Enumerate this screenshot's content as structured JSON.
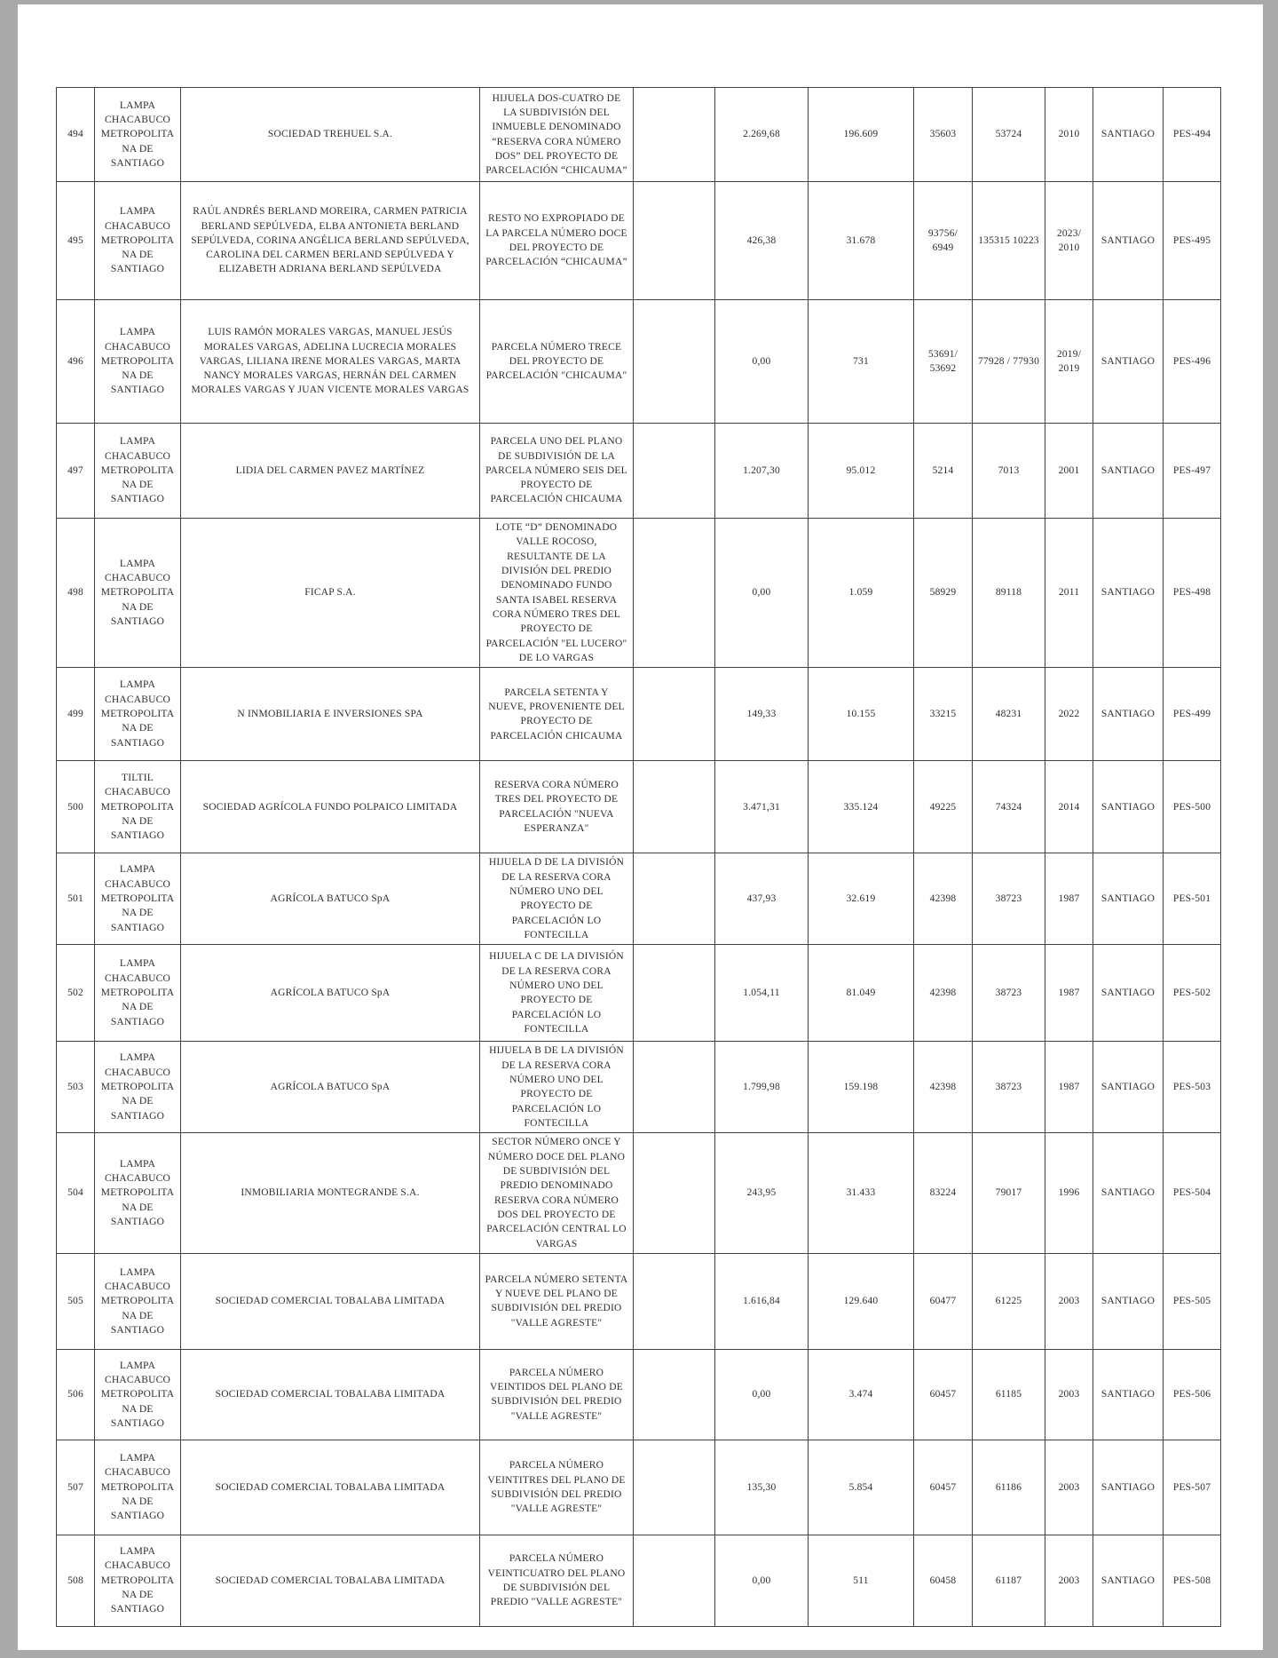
{
  "page": {
    "background_color": "#a9a9a9",
    "paper_color": "#ffffff",
    "border_color": "#3f3f3f"
  },
  "table": {
    "rows": [
      {
        "num": "494",
        "location": "LAMPA CHACABUCO METROPOLITANA DE SANTIAGO",
        "owner": "SOCIEDAD TREHUEL S.A.",
        "description": "HIJUELA DOS-CUATRO DE LA SUBDIVISIÓN DEL INMUEBLE DENOMINADO “RESERVA CORA NÚMERO DOS” DEL PROYECTO DE PARCELACIÓN “CHICAUMA”",
        "blank": "",
        "val_a": "2.269,68",
        "val_b": "196.609",
        "val_c": "35603",
        "val_d": "53724",
        "year": "2010",
        "city": "SANTIAGO",
        "code": "PES-494"
      },
      {
        "num": "495",
        "location": "LAMPA CHACABUCO METROPOLITANA DE SANTIAGO",
        "owner": "RAÚL ANDRÉS BERLAND MOREIRA, CARMEN PATRICIA BERLAND SEPÚLVEDA, ELBA ANTONIETA BERLAND SEPÚLVEDA, CORINA ANGÉLICA BERLAND SEPÚLVEDA, CAROLINA DEL CARMEN BERLAND SEPÚLVEDA Y ELIZABETH ADRIANA BERLAND SEPÚLVEDA",
        "description": "RESTO NO EXPROPIADO DE LA PARCELA NÚMERO DOCE DEL PROYECTO DE PARCELACIÓN “CHICAUMA”",
        "blank": "",
        "val_a": "426,38",
        "val_b": "31.678",
        "val_c": "93756/ 6949",
        "val_d": "135315 10223",
        "year": "2023/ 2010",
        "city": "SANTIAGO",
        "code": "PES-495"
      },
      {
        "num": "496",
        "location": "LAMPA CHACABUCO METROPOLITANA DE SANTIAGO",
        "owner": "LUIS RAMÓN MORALES VARGAS, MANUEL JESÚS MORALES VARGAS, ADELINA LUCRECIA MORALES VARGAS, LILIANA IRENE MORALES VARGAS, MARTA NANCY MORALES VARGAS, HERNÁN DEL CARMEN MORALES VARGAS Y JUAN VICENTE MORALES VARGAS",
        "description": "PARCELA NÚMERO TRECE DEL PROYECTO DE PARCELACIÓN \"CHICAUMA\"",
        "blank": "",
        "val_a": "0,00",
        "val_b": "731",
        "val_c": "53691/ 53692",
        "val_d": "77928 / 77930",
        "year": "2019/ 2019",
        "city": "SANTIAGO",
        "code": "PES-496"
      },
      {
        "num": "497",
        "location": "LAMPA CHACABUCO METROPOLITANA DE SANTIAGO",
        "owner": "LIDIA DEL CARMEN PAVEZ MARTÍNEZ",
        "description": "PARCELA UNO DEL PLANO DE SUBDIVISIÓN DE LA PARCELA NÚMERO SEIS DEL PROYECTO DE PARCELACIÓN CHICAUMA",
        "blank": "",
        "val_a": "1.207,30",
        "val_b": "95.012",
        "val_c": "5214",
        "val_d": "7013",
        "year": "2001",
        "city": "SANTIAGO",
        "code": "PES-497"
      },
      {
        "num": "498",
        "location": "LAMPA CHACABUCO METROPOLITANA DE SANTIAGO",
        "owner": "FICAP S.A.",
        "description": "LOTE “D” DENOMINADO VALLE ROCOSO, RESULTANTE DE LA DIVISIÓN DEL PREDIO DENOMINADO FUNDO SANTA ISABEL RESERVA CORA NÚMERO TRES DEL PROYECTO DE PARCELACIÓN \"EL LUCERO\" DE LO VARGAS",
        "blank": "",
        "val_a": "0,00",
        "val_b": "1.059",
        "val_c": "58929",
        "val_d": "89118",
        "year": "2011",
        "city": "SANTIAGO",
        "code": "PES-498"
      },
      {
        "num": "499",
        "location": "LAMPA CHACABUCO METROPOLITANA DE SANTIAGO",
        "owner": "N INMOBILIARIA E INVERSIONES SPA",
        "description": "PARCELA SETENTA Y NUEVE, PROVENIENTE DEL PROYECTO DE PARCELACIÓN CHICAUMA",
        "blank": "",
        "val_a": "149,33",
        "val_b": "10.155",
        "val_c": "33215",
        "val_d": "48231",
        "year": "2022",
        "city": "SANTIAGO",
        "code": "PES-499"
      },
      {
        "num": "500",
        "location": "TILTIL CHACABUCO METROPOLITANA DE SANTIAGO",
        "owner": "SOCIEDAD AGRÍCOLA FUNDO POLPAICO LIMITADA",
        "description": "RESERVA CORA NÚMERO TRES DEL PROYECTO DE PARCELACIÓN \"NUEVA ESPERANZA\"",
        "blank": "",
        "val_a": "3.471,31",
        "val_b": "335.124",
        "val_c": "49225",
        "val_d": "74324",
        "year": "2014",
        "city": "SANTIAGO",
        "code": "PES-500"
      },
      {
        "num": "501",
        "location": "LAMPA CHACABUCO METROPOLITANA DE SANTIAGO",
        "owner": "AGRÍCOLA BATUCO SpA",
        "description": "HIJUELA D DE LA DIVISIÓN DE LA RESERVA CORA NÚMERO UNO DEL PROYECTO DE PARCELACIÓN LO FONTECILLA",
        "blank": "",
        "val_a": "437,93",
        "val_b": "32.619",
        "val_c": "42398",
        "val_d": "38723",
        "year": "1987",
        "city": "SANTIAGO",
        "code": "PES-501"
      },
      {
        "num": "502",
        "location": "LAMPA CHACABUCO METROPOLITANA DE SANTIAGO",
        "owner": "AGRÍCOLA BATUCO SpA",
        "description": "HIJUELA C DE LA DIVISIÓN DE LA RESERVA CORA NÚMERO UNO DEL PROYECTO DE PARCELACIÓN LO FONTECILLA",
        "blank": "",
        "val_a": "1.054,11",
        "val_b": "81.049",
        "val_c": "42398",
        "val_d": "38723",
        "year": "1987",
        "city": "SANTIAGO",
        "code": "PES-502"
      },
      {
        "num": "503",
        "location": "LAMPA CHACABUCO METROPOLITANA DE SANTIAGO",
        "owner": "AGRÍCOLA BATUCO SpA",
        "description": "HIJUELA B DE LA DIVISIÓN DE LA RESERVA CORA NÚMERO UNO DEL PROYECTO DE PARCELACIÓN LO FONTECILLA",
        "blank": "",
        "val_a": "1.799,98",
        "val_b": "159.198",
        "val_c": "42398",
        "val_d": "38723",
        "year": "1987",
        "city": "SANTIAGO",
        "code": "PES-503"
      },
      {
        "num": "504",
        "location": "LAMPA CHACABUCO METROPOLITANA DE SANTIAGO",
        "owner": "INMOBILIARIA MONTEGRANDE S.A.",
        "description": "SECTOR NÚMERO ONCE Y NÚMERO DOCE DEL PLANO DE SUBDIVISIÓN DEL PREDIO DENOMINADO RESERVA CORA NÚMERO DOS DEL PROYECTO DE PARCELACIÓN CENTRAL LO VARGAS",
        "blank": "",
        "val_a": "243,95",
        "val_b": "31.433",
        "val_c": "83224",
        "val_d": "79017",
        "year": "1996",
        "city": "SANTIAGO",
        "code": "PES-504"
      },
      {
        "num": "505",
        "location": "LAMPA CHACABUCO METROPOLITANA DE SANTIAGO",
        "owner": "SOCIEDAD COMERCIAL TOBALABA LIMITADA",
        "description": "PARCELA NÚMERO SETENTA Y NUEVE DEL PLANO DE SUBDIVISIÓN DEL PREDIO \"VALLE AGRESTE\"",
        "blank": "",
        "val_a": "1.616,84",
        "val_b": "129.640",
        "val_c": "60477",
        "val_d": "61225",
        "year": "2003",
        "city": "SANTIAGO",
        "code": "PES-505"
      },
      {
        "num": "506",
        "location": "LAMPA CHACABUCO METROPOLITANA DE SANTIAGO",
        "owner": "SOCIEDAD COMERCIAL TOBALABA LIMITADA",
        "description": "PARCELA NÚMERO VEINTIDOS DEL PLANO DE SUBDIVISIÓN DEL PREDIO \"VALLE AGRESTE\"",
        "blank": "",
        "val_a": "0,00",
        "val_b": "3.474",
        "val_c": "60457",
        "val_d": "61185",
        "year": "2003",
        "city": "SANTIAGO",
        "code": "PES-506"
      },
      {
        "num": "507",
        "location": "LAMPA CHACABUCO METROPOLITANA DE SANTIAGO",
        "owner": "SOCIEDAD COMERCIAL TOBALABA LIMITADA",
        "description": "PARCELA NÚMERO VEINTITRES DEL PLANO DE SUBDIVISIÓN DEL PREDIO \"VALLE AGRESTE\"",
        "blank": "",
        "val_a": "135,30",
        "val_b": "5.854",
        "val_c": "60457",
        "val_d": "61186",
        "year": "2003",
        "city": "SANTIAGO",
        "code": "PES-507"
      },
      {
        "num": "508",
        "location": "LAMPA CHACABUCO METROPOLITANA DE SANTIAGO",
        "owner": "SOCIEDAD COMERCIAL TOBALABA LIMITADA",
        "description": "PARCELA NÚMERO VEINTICUATRO DEL PLANO DE SUBDIVISIÓN DEL PREDIO \"VALLE AGRESTE\"",
        "blank": "",
        "val_a": "0,00",
        "val_b": "511",
        "val_c": "60458",
        "val_d": "61187",
        "year": "2003",
        "city": "SANTIAGO",
        "code": "PES-508"
      }
    ]
  }
}
